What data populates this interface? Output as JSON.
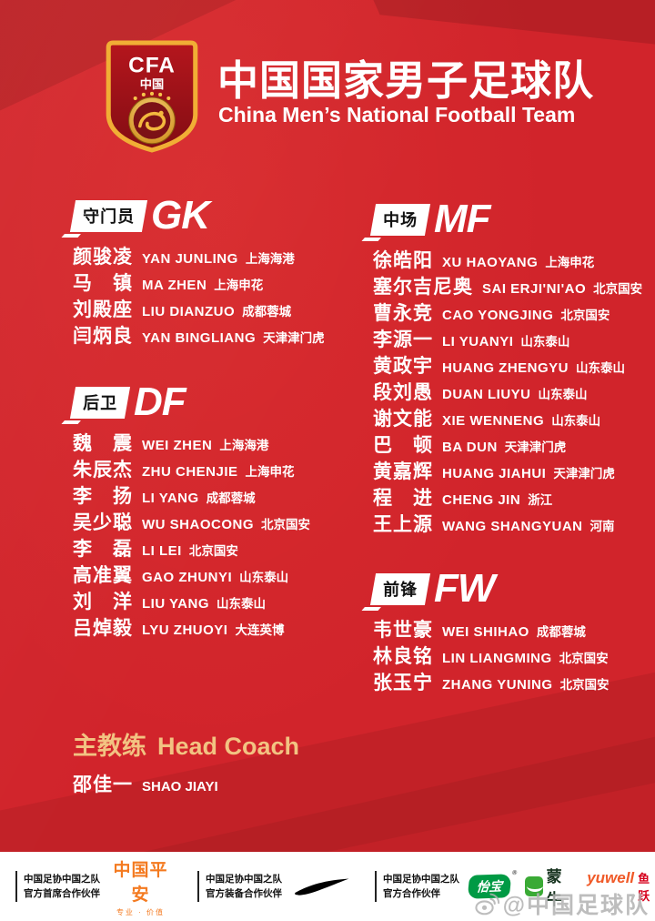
{
  "header": {
    "logo": {
      "acronym": "CFA",
      "country": "中国"
    },
    "title": "中国国家男子足球队",
    "subtitle": "China Men’s National Football Team"
  },
  "sections": [
    {
      "id": "gk",
      "label_cn": "守门员",
      "label_en": "GK",
      "players": [
        {
          "name": "颜骏凌",
          "pinyin": "YAN JUNLING",
          "club": "上海海港"
        },
        {
          "name": "马　镇",
          "pinyin": "MA ZHEN",
          "club": "上海申花"
        },
        {
          "name": "刘殿座",
          "pinyin": "LIU DIANZUO",
          "club": "成都蓉城"
        },
        {
          "name": "闫炳良",
          "pinyin": "YAN BINGLIANG",
          "club": "天津津门虎"
        }
      ]
    },
    {
      "id": "df",
      "label_cn": "后卫",
      "label_en": "DF",
      "players": [
        {
          "name": "魏　震",
          "pinyin": "WEI ZHEN",
          "club": "上海海港"
        },
        {
          "name": "朱辰杰",
          "pinyin": "ZHU CHENJIE",
          "club": "上海申花"
        },
        {
          "name": "李　扬",
          "pinyin": "LI YANG",
          "club": "成都蓉城"
        },
        {
          "name": "吴少聪",
          "pinyin": "WU SHAOCONG",
          "club": "北京国安"
        },
        {
          "name": "李　磊",
          "pinyin": "LI LEI",
          "club": "北京国安"
        },
        {
          "name": "高准翼",
          "pinyin": "GAO ZHUNYI",
          "club": "山东泰山"
        },
        {
          "name": "刘　洋",
          "pinyin": "LIU YANG",
          "club": "山东泰山"
        },
        {
          "name": "吕焯毅",
          "pinyin": "LYU ZHUOYI",
          "club": "大连英博"
        }
      ]
    },
    {
      "id": "mf",
      "label_cn": "中场",
      "label_en": "MF",
      "players": [
        {
          "name": "徐皓阳",
          "pinyin": "XU HAOYANG",
          "club": "上海申花"
        },
        {
          "name": "塞尔吉尼奥",
          "pinyin": "SAI ERJI'NI'AO",
          "club": "北京国安"
        },
        {
          "name": "曹永竞",
          "pinyin": "CAO YONGJING",
          "club": "北京国安"
        },
        {
          "name": "李源一",
          "pinyin": "LI YUANYI",
          "club": "山东泰山"
        },
        {
          "name": "黄政宇",
          "pinyin": "HUANG ZHENGYU",
          "club": "山东泰山"
        },
        {
          "name": "段刘愚",
          "pinyin": "DUAN LIUYU",
          "club": "山东泰山"
        },
        {
          "name": "谢文能",
          "pinyin": "XIE WENNENG",
          "club": "山东泰山"
        },
        {
          "name": "巴　顿",
          "pinyin": "BA DUN",
          "club": "天津津门虎"
        },
        {
          "name": "黄嘉辉",
          "pinyin": "HUANG JIAHUI",
          "club": "天津津门虎"
        },
        {
          "name": "程　进",
          "pinyin": "CHENG JIN",
          "club": "浙江"
        },
        {
          "name": "王上源",
          "pinyin": "WANG SHANGYUAN",
          "club": "河南"
        }
      ]
    },
    {
      "id": "fw",
      "label_cn": "前锋",
      "label_en": "FW",
      "players": [
        {
          "name": "韦世豪",
          "pinyin": "WEI SHIHAO",
          "club": "成都蓉城"
        },
        {
          "name": "林良铭",
          "pinyin": "LIN LIANGMING",
          "club": "北京国安"
        },
        {
          "name": "张玉宁",
          "pinyin": "ZHANG YUNING",
          "club": "北京国安"
        }
      ]
    }
  ],
  "coach": {
    "label_cn": "主教练",
    "label_en": "Head Coach",
    "name": "邵佳一",
    "pinyin": "SHAO JIAYI"
  },
  "footer": {
    "partners": [
      {
        "line1": "中国足协中国之队",
        "line2": "官方首席合作伙伴"
      },
      {
        "line1": "中国足协中国之队",
        "line2": "官方装备合作伙伴"
      },
      {
        "line1": "中国足协中国之队",
        "line2": "官方合作伙伴"
      }
    ],
    "sponsors": {
      "pingan": {
        "name": "中国平安",
        "tagline": "专业 · 价值"
      },
      "nike": {
        "icon": "nike-swoosh-icon"
      },
      "yibao": {
        "name": "怡宝",
        "reg": "®"
      },
      "mengniu": {
        "name": "蒙牛"
      },
      "yuwell": {
        "name": "yuwell",
        "cn": "鱼跃"
      }
    }
  },
  "watermark": {
    "handle": "@中国足球队"
  },
  "colors": {
    "background_red": "#d1242b",
    "gold_accent": "#f2c382",
    "pingan_orange": "#f47a20",
    "yibao_green": "#009a44",
    "mengniu_green": "#3aaa35",
    "yuwell_orange": "#f05a28",
    "yuwell_red": "#d6001c"
  }
}
